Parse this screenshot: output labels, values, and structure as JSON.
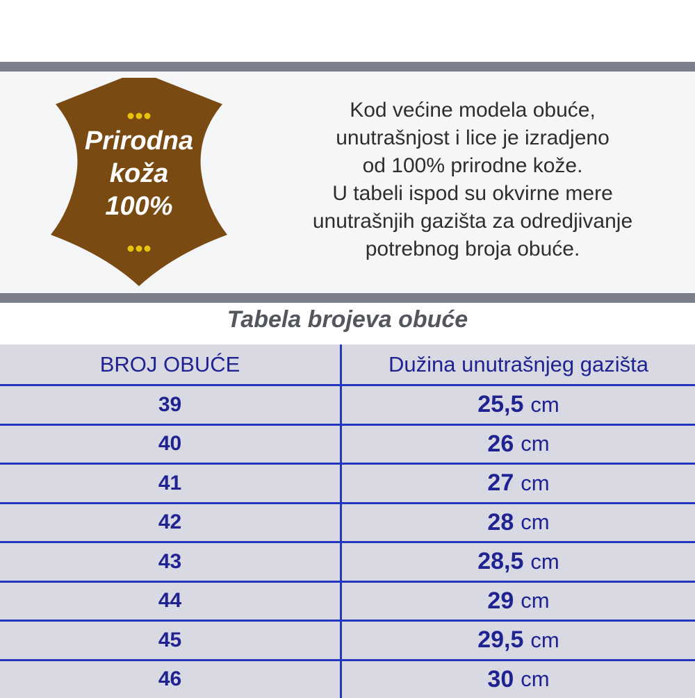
{
  "colors": {
    "brown": "#7a4a13",
    "gold": "#e8c30d",
    "gray_bar": "#7b7f8b",
    "panel_bg": "#f4f6f7",
    "title_gray": "#54565e",
    "navy_text": "#1f2391",
    "table_border": "#2636c0",
    "cell_bg": "#d8d9e2"
  },
  "badge": {
    "line1": "Prirodna",
    "line2": "koža",
    "line3": "100%",
    "dots_icon": "three-gold-dots"
  },
  "intro": {
    "lines": [
      "Kod većine modela obuće,",
      "unutrašnjost i lice je izradjeno",
      "od 100% prirodne kože.",
      "U tabeli ispod su okvirne mere",
      "unutrašnjih gazišta za odredjivanje",
      "potrebnog broja obuće."
    ]
  },
  "table_title": "Tabela brojeva obuće",
  "size_table": {
    "columns": [
      "BROJ OBUĆE",
      "Dužina unutrašnjeg gazišta"
    ],
    "unit": "cm",
    "rows": [
      {
        "size": "39",
        "length": "25,5"
      },
      {
        "size": "40",
        "length": "26"
      },
      {
        "size": "41",
        "length": "27"
      },
      {
        "size": "42",
        "length": "28"
      },
      {
        "size": "43",
        "length": "28,5"
      },
      {
        "size": "44",
        "length": "29"
      },
      {
        "size": "45",
        "length": "29,5"
      },
      {
        "size": "46",
        "length": "30"
      }
    ]
  }
}
